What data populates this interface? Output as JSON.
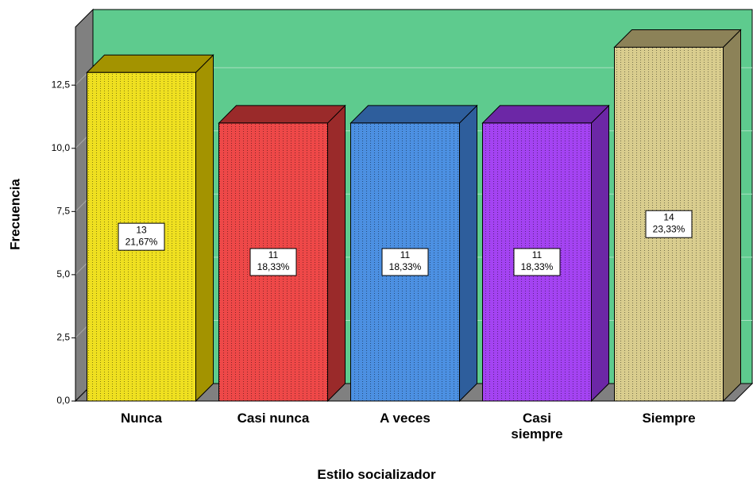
{
  "chart_data": {
    "type": "bar3d",
    "xlabel": "Estilo socializador",
    "ylabel": "Frecuencia",
    "categories": [
      "Nunca",
      "Casi nunca",
      "A veces",
      "Casi siempre",
      "Siempre"
    ],
    "values": [
      13,
      11,
      11,
      11,
      14
    ],
    "percent_labels": [
      "21,67%",
      "18,33%",
      "18,33%",
      "18,33%",
      "23,33%"
    ],
    "colors": [
      "#efe020",
      "#ee4848",
      "#4c90e2",
      "#a443f2",
      "#d9cd8e"
    ],
    "top_colors": [
      "#a39300",
      "#9a2a2a",
      "#2e5e9c",
      "#6c27a6",
      "#8c8258"
    ],
    "wall_color": "#5ecb8e",
    "ylim": [
      0,
      14.8
    ],
    "yticks": [
      {
        "value": 0,
        "label": "0,0"
      },
      {
        "value": 2.5,
        "label": "2,5"
      },
      {
        "value": 5,
        "label": "5,0"
      },
      {
        "value": 7.5,
        "label": "7,5"
      },
      {
        "value": 10,
        "label": "10,0"
      },
      {
        "value": 12.5,
        "label": "12,5"
      }
    ],
    "grid": true
  }
}
